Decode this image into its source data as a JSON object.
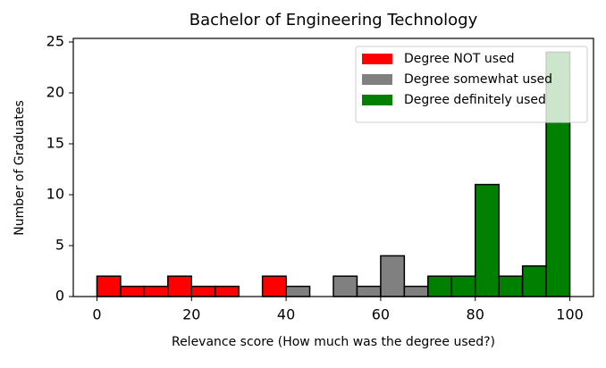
{
  "chart_data": {
    "type": "histogram",
    "title": "Bachelor of Engineering Technology",
    "xlabel": "Relevance score (How much was the degree used?)",
    "ylabel": "Number of Graduates",
    "bins": [
      0,
      5,
      10,
      15,
      20,
      25,
      30,
      35,
      40,
      45,
      50,
      55,
      60,
      65,
      70,
      75,
      80,
      85,
      90,
      95,
      100
    ],
    "series": [
      {
        "name": "Degree NOT used",
        "color": "#ff0000",
        "values": [
          2,
          1,
          1,
          2,
          1,
          1,
          0,
          2,
          null,
          null,
          null,
          null,
          null,
          null,
          null,
          null,
          null,
          null,
          null,
          null
        ]
      },
      {
        "name": "Degree somewhat used",
        "color": "#808080",
        "values": [
          null,
          null,
          null,
          null,
          null,
          null,
          null,
          null,
          1,
          0,
          2,
          1,
          4,
          1,
          null,
          null,
          null,
          null,
          null,
          null
        ]
      },
      {
        "name": "Degree definitely used",
        "color": "#008000",
        "values": [
          null,
          null,
          null,
          null,
          null,
          null,
          null,
          null,
          null,
          null,
          null,
          null,
          null,
          null,
          2,
          2,
          11,
          2,
          3,
          24
        ]
      }
    ],
    "xlim": [
      -5,
      105
    ],
    "ylim": [
      0,
      25.35
    ],
    "xticks": [
      0,
      20,
      40,
      60,
      80,
      100
    ],
    "yticks": [
      0,
      5,
      10,
      15,
      20,
      25
    ],
    "legend": "upper right"
  }
}
